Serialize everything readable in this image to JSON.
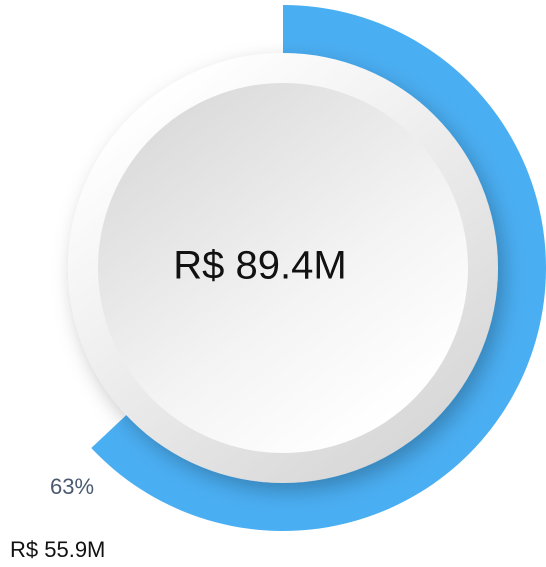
{
  "chart_data": {
    "type": "gauge",
    "values": [
      63
    ],
    "value_labels": [
      "63%"
    ],
    "ylim": [
      0,
      100
    ],
    "color": "#4aaef2",
    "amount_label": "R$ 55.9M",
    "total_label": "R$ 89.4M"
  }
}
